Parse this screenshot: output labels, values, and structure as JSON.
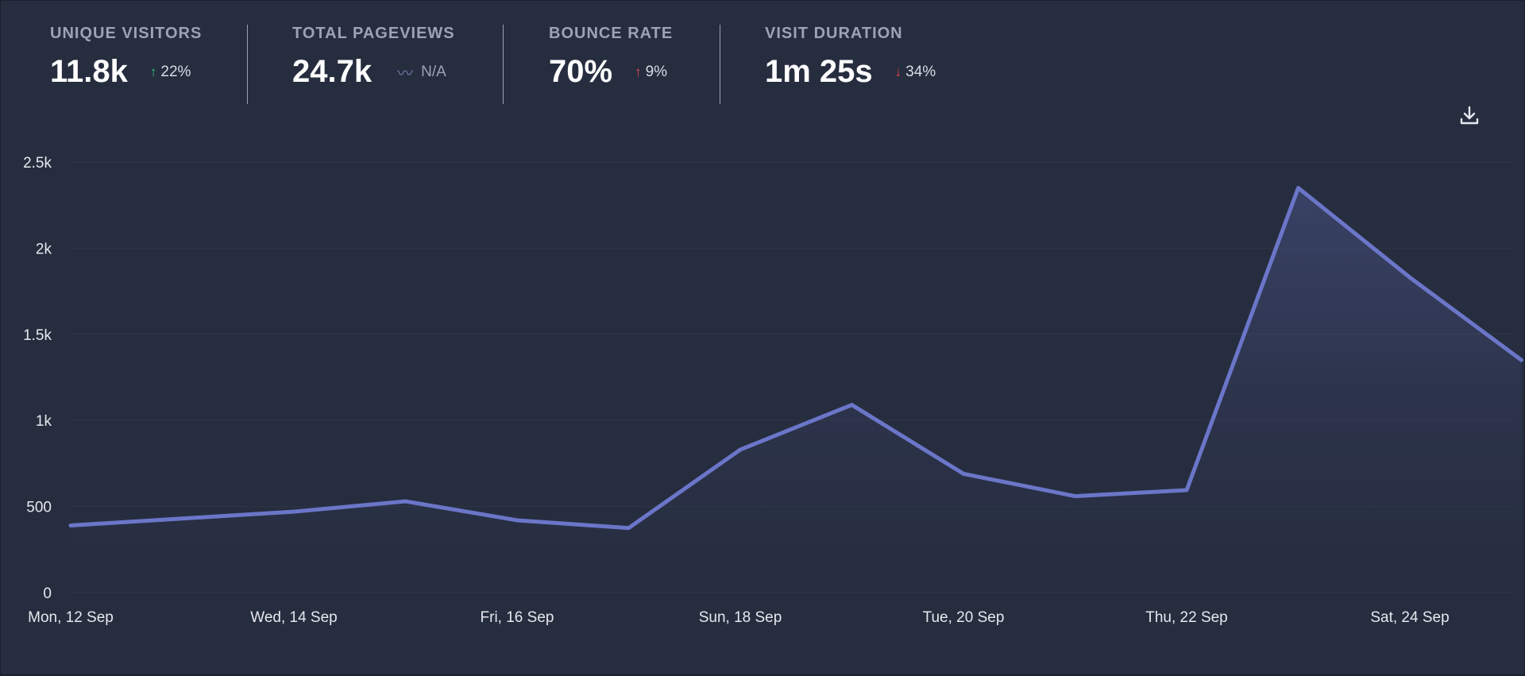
{
  "stats": [
    {
      "label": "UNIQUE VISITORS",
      "value": "11.8k",
      "change_icon": "arrow-up-icon",
      "change": "22%",
      "change_color": "#2ec27e"
    },
    {
      "label": "TOTAL PAGEVIEWS",
      "value": "24.7k",
      "change_icon": "wave-icon",
      "change": "N/A",
      "change_color": "#6c7aa8"
    },
    {
      "label": "BOUNCE RATE",
      "value": "70%",
      "change_icon": "arrow-up-icon",
      "change": "9%",
      "change_color": "#e5484d"
    },
    {
      "label": "VISIT DURATION",
      "value": "1m 25s",
      "change_icon": "arrow-down-icon",
      "change": "34%",
      "change_color": "#e5484d"
    }
  ],
  "download_icon": "download-icon",
  "colors": {
    "line": "#6b76c9",
    "background": "#262d3f",
    "grid": "#2f3647"
  },
  "chart_data": {
    "type": "area",
    "title": "",
    "xlabel": "",
    "ylabel": "",
    "ylim": [
      0,
      2500
    ],
    "yticks": [
      "0",
      "500",
      "1k",
      "1.5k",
      "2k",
      "2.5k"
    ],
    "ytick_values": [
      0,
      500,
      1000,
      1500,
      2000,
      2500
    ],
    "x": [
      "Mon, 12 Sep",
      "Tue, 13 Sep",
      "Wed, 14 Sep",
      "Thu, 15 Sep",
      "Fri, 16 Sep",
      "Sat, 17 Sep",
      "Sun, 18 Sep",
      "Mon, 19 Sep",
      "Tue, 20 Sep",
      "Wed, 21 Sep",
      "Thu, 22 Sep",
      "Fri, 23 Sep",
      "Sat, 24 Sep",
      "Sun, 25 Sep"
    ],
    "xtick_labels": [
      "Mon, 12 Sep",
      "Wed, 14 Sep",
      "Fri, 16 Sep",
      "Sun, 18 Sep",
      "Tue, 20 Sep",
      "Thu, 22 Sep",
      "Sat, 24 Sep"
    ],
    "series": [
      {
        "name": "Unique visitors",
        "values": [
          390,
          430,
          470,
          530,
          420,
          375,
          830,
          1090,
          690,
          560,
          595,
          2350,
          1830,
          1350
        ]
      }
    ],
    "grid": true
  }
}
